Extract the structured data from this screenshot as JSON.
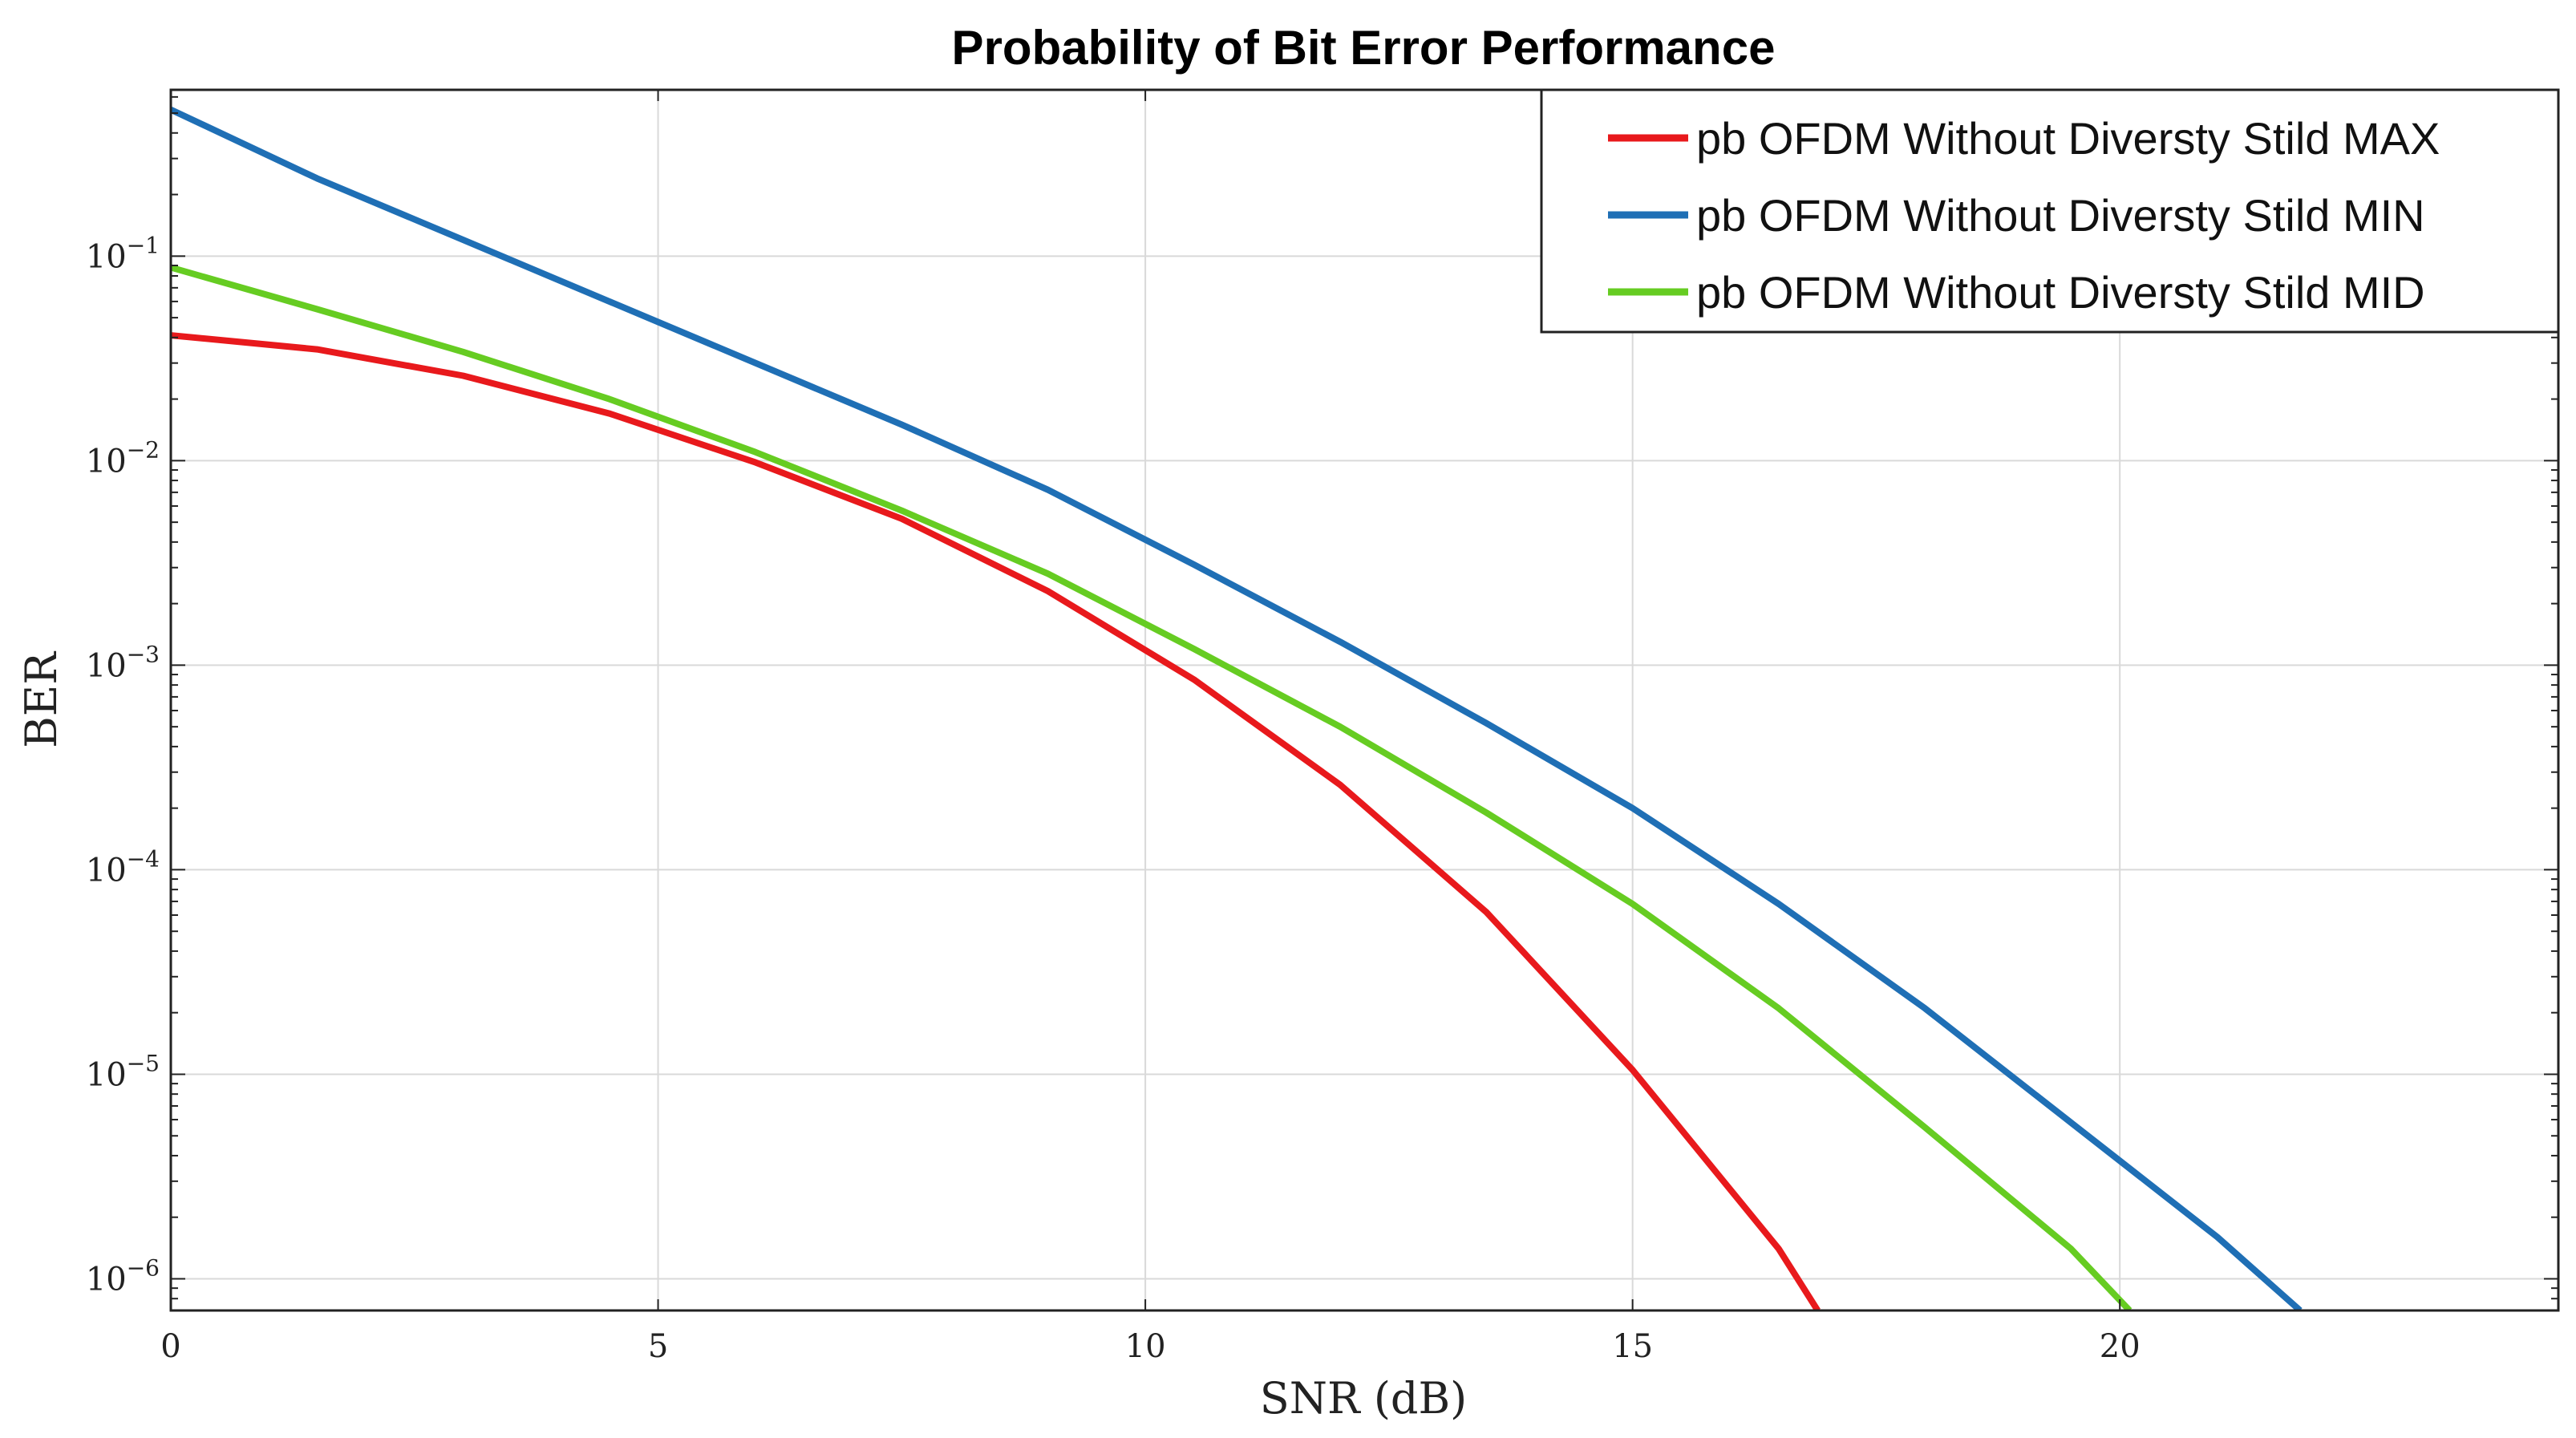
{
  "chart_data": {
    "type": "line",
    "title": "Probability of Bit Error Performance",
    "xlabel": "SNR (dB)",
    "ylabel": "BER",
    "yscale": "log",
    "xlim": [
      0,
      24.5
    ],
    "ylim": [
      7e-07,
      0.65
    ],
    "grid": true,
    "legend_position": "top-right",
    "x_ticks": [
      0,
      5,
      10,
      15,
      20
    ],
    "y_ticks": [
      {
        "value": 0.1,
        "base": "10",
        "exp": "−1"
      },
      {
        "value": 0.01,
        "base": "10",
        "exp": "−2"
      },
      {
        "value": 0.001,
        "base": "10",
        "exp": "−3"
      },
      {
        "value": 0.0001,
        "base": "10",
        "exp": "−4"
      },
      {
        "value": 1e-05,
        "base": "10",
        "exp": "−5"
      },
      {
        "value": 1e-06,
        "base": "10",
        "exp": "−6"
      }
    ],
    "series": [
      {
        "name": "pb OFDM Without Diversty Stild MAX",
        "color": "#e8191c",
        "x": [
          0,
          1.5,
          3,
          4.5,
          6,
          7.5,
          9,
          10.5,
          12,
          13.5,
          15,
          16.5,
          16.9
        ],
        "y": [
          0.041,
          0.035,
          0.026,
          0.017,
          0.0098,
          0.0052,
          0.0023,
          0.00085,
          0.00026,
          6.2e-05,
          1.05e-05,
          1.4e-06,
          7e-07
        ]
      },
      {
        "name": "pb OFDM Without Diversty Stild MIN",
        "color": "#1f6fb5",
        "x": [
          0,
          1.5,
          3,
          4.5,
          6,
          7.5,
          9,
          10.5,
          12,
          13.5,
          15,
          16.5,
          18,
          19.5,
          21,
          21.85
        ],
        "y": [
          0.52,
          0.24,
          0.12,
          0.06,
          0.03,
          0.015,
          0.0072,
          0.0031,
          0.0013,
          0.00052,
          0.0002,
          6.8e-05,
          2.1e-05,
          5.8e-06,
          1.6e-06,
          7e-07
        ]
      },
      {
        "name": "pb OFDM Without Diversty Stild MID",
        "color": "#66cc22",
        "x": [
          0,
          1.5,
          3,
          4.5,
          6,
          7.5,
          9,
          10.5,
          12,
          13.5,
          15,
          16.5,
          18,
          19.5,
          20.1
        ],
        "y": [
          0.088,
          0.055,
          0.034,
          0.02,
          0.011,
          0.0057,
          0.0028,
          0.0012,
          0.0005,
          0.00019,
          6.8e-05,
          2.1e-05,
          5.5e-06,
          1.4e-06,
          7e-07
        ]
      }
    ]
  }
}
